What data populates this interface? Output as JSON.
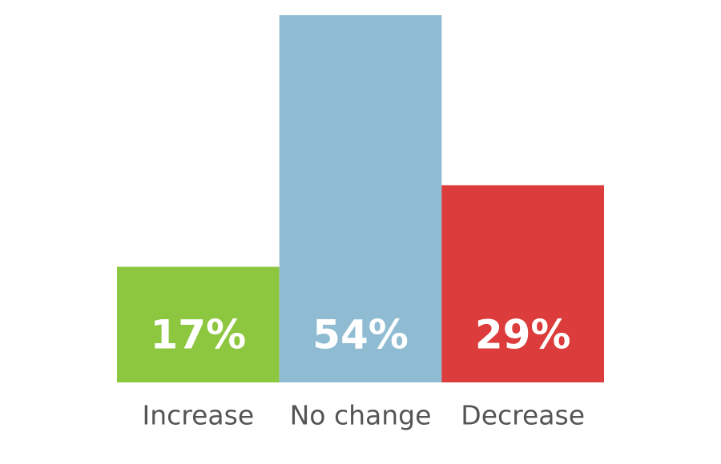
{
  "chart_data": {
    "type": "bar",
    "categories": [
      "Increase",
      "No change",
      "Decrease"
    ],
    "values": [
      17,
      54,
      29
    ],
    "value_labels": [
      "17%",
      "54%",
      "29%"
    ],
    "colors": [
      "#8dc63f",
      "#8fbcd2",
      "#dc3c3b"
    ]
  }
}
